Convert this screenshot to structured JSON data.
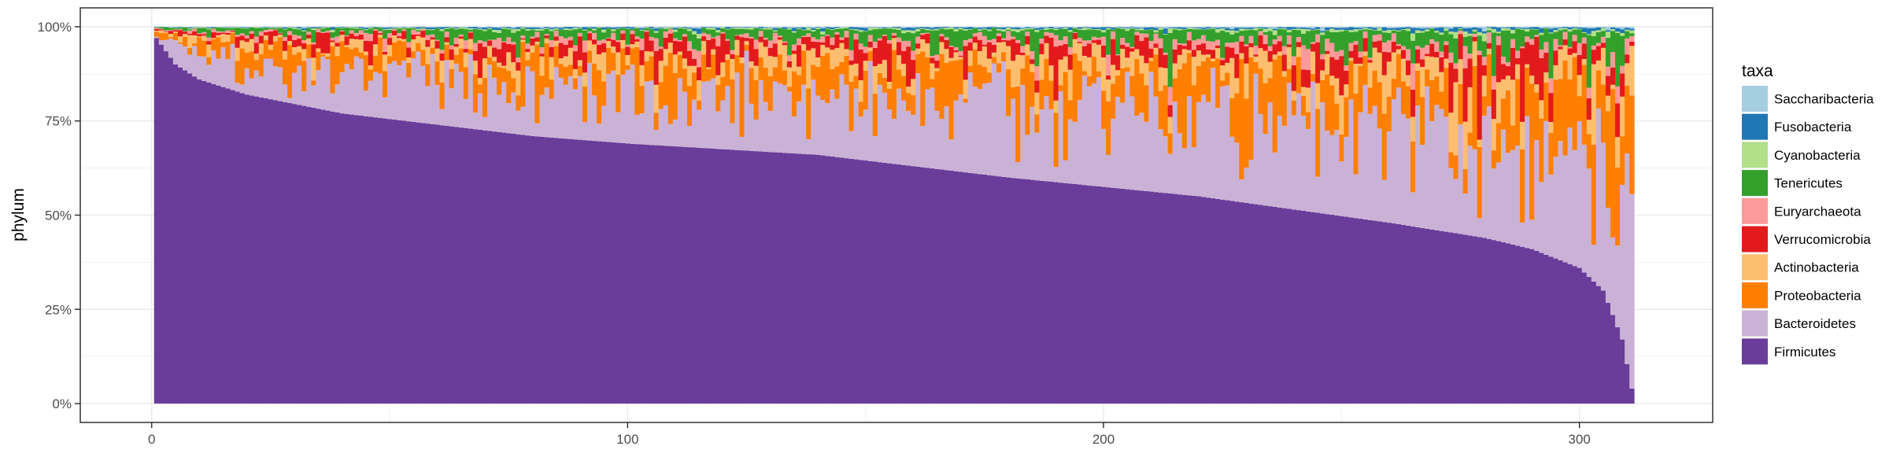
{
  "chart_data": {
    "type": "bar",
    "stacked": true,
    "normalized": true,
    "title": "",
    "xlabel": "",
    "ylabel": "phylum",
    "n_samples": 311,
    "x_ticks": [
      0,
      100,
      200,
      300
    ],
    "x_tick_labels": [
      "0",
      "100",
      "200",
      "300"
    ],
    "xlim": [
      -15,
      328
    ],
    "y_ticks": [
      0,
      0.25,
      0.5,
      0.75,
      1.0
    ],
    "y_tick_labels": [
      "0%",
      "25%",
      "50%",
      "75%",
      "100%"
    ],
    "ylim": [
      -0.05,
      1.05
    ],
    "grid": true,
    "legend": {
      "title": "taxa",
      "position": "right",
      "entries": [
        {
          "name": "Saccharibacteria",
          "color": "#a6cee3"
        },
        {
          "name": "Fusobacteria",
          "color": "#1f78b4"
        },
        {
          "name": "Cyanobacteria",
          "color": "#b2df8a"
        },
        {
          "name": "Tenericutes",
          "color": "#33a02c"
        },
        {
          "name": "Euryarchaeota",
          "color": "#fb9a99"
        },
        {
          "name": "Verrucomicrobia",
          "color": "#e31a1c"
        },
        {
          "name": "Actinobacteria",
          "color": "#fdbf6f"
        },
        {
          "name": "Proteobacteria",
          "color": "#ff7f00"
        },
        {
          "name": "Bacteroidetes",
          "color": "#cab2d6"
        },
        {
          "name": "Firmicutes",
          "color": "#6a3d9a"
        }
      ]
    },
    "firmicutes_curve": [
      [
        1,
        0.97
      ],
      [
        5,
        0.9
      ],
      [
        10,
        0.86
      ],
      [
        20,
        0.82
      ],
      [
        40,
        0.77
      ],
      [
        60,
        0.74
      ],
      [
        80,
        0.71
      ],
      [
        100,
        0.69
      ],
      [
        120,
        0.675
      ],
      [
        140,
        0.66
      ],
      [
        160,
        0.63
      ],
      [
        180,
        0.6
      ],
      [
        200,
        0.575
      ],
      [
        220,
        0.55
      ],
      [
        240,
        0.515
      ],
      [
        260,
        0.48
      ],
      [
        280,
        0.44
      ],
      [
        290,
        0.41
      ],
      [
        300,
        0.36
      ],
      [
        305,
        0.3
      ],
      [
        309,
        0.17
      ],
      [
        311,
        0.04
      ]
    ],
    "series_mean_share_of_remainder": {
      "Bacteroidetes": 0.5,
      "Proteobacteria": 0.2,
      "Actinobacteria": 0.11,
      "Verrucomicrobia": 0.07,
      "Euryarchaeota": 0.04,
      "Tenericutes": 0.055,
      "Cyanobacteria": 0.01,
      "Fusobacteria": 0.01,
      "Saccharibacteria": 0.005
    }
  }
}
